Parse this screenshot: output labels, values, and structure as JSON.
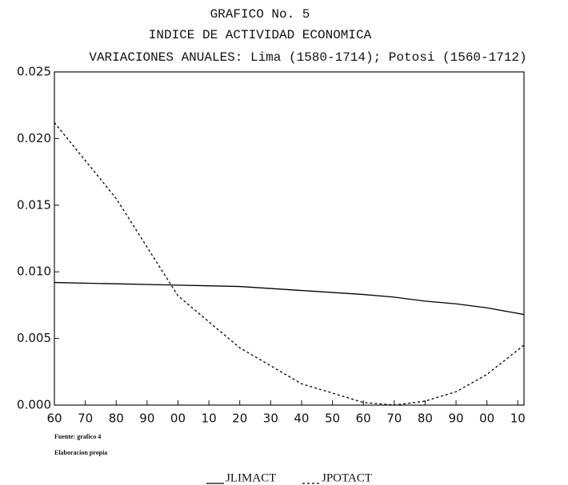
{
  "chart_data": {
    "type": "line",
    "title": [
      "GRAFICO No. 5",
      "INDICE DE ACTIVIDAD ECONOMICA",
      "VARIACIONES ANUALES: Lima (1580-1714); Potosi (1560-1712)"
    ],
    "notes": [
      "Fuente: grafico 4",
      "Elaboracion propia"
    ],
    "x": [
      1560,
      1580,
      1600,
      1620,
      1640,
      1660,
      1670,
      1680,
      1690,
      1700,
      1712
    ],
    "series": [
      {
        "name": "JLIMACT",
        "color": "#000000",
        "style": "solid",
        "values": [
          0.0092,
          0.0091,
          0.009,
          0.0089,
          0.0086,
          0.0083,
          0.0081,
          0.0078,
          0.0076,
          0.0073,
          0.0068
        ]
      },
      {
        "name": "JPOTACT",
        "color": "#000000",
        "style": "dashed",
        "values": [
          0.0212,
          0.0155,
          0.0082,
          0.0043,
          0.0016,
          0.0002,
          0.0,
          0.0003,
          0.001,
          0.0023,
          0.0045
        ]
      }
    ],
    "xlim": [
      1560,
      1712
    ],
    "xticks": [
      {
        "value": 1560,
        "label": "60"
      },
      {
        "value": 1570,
        "label": "70"
      },
      {
        "value": 1580,
        "label": "80"
      },
      {
        "value": 1590,
        "label": "90"
      },
      {
        "value": 1600,
        "label": "00"
      },
      {
        "value": 1610,
        "label": "10"
      },
      {
        "value": 1620,
        "label": "20"
      },
      {
        "value": 1630,
        "label": "30"
      },
      {
        "value": 1640,
        "label": "40"
      },
      {
        "value": 1650,
        "label": "50"
      },
      {
        "value": 1660,
        "label": "60"
      },
      {
        "value": 1670,
        "label": "70"
      },
      {
        "value": 1680,
        "label": "80"
      },
      {
        "value": 1690,
        "label": "90"
      },
      {
        "value": 1700,
        "label": "00"
      },
      {
        "value": 1710,
        "label": "10"
      }
    ],
    "ylim": [
      0,
      0.025
    ],
    "yticks": [
      {
        "value": 0,
        "label": "0.000"
      },
      0.005,
      {
        "value": 0.01,
        "label": "0.010"
      },
      0.015,
      {
        "value": 0.02,
        "label": "0.020"
      },
      0.025
    ],
    "legend": "bottom"
  }
}
